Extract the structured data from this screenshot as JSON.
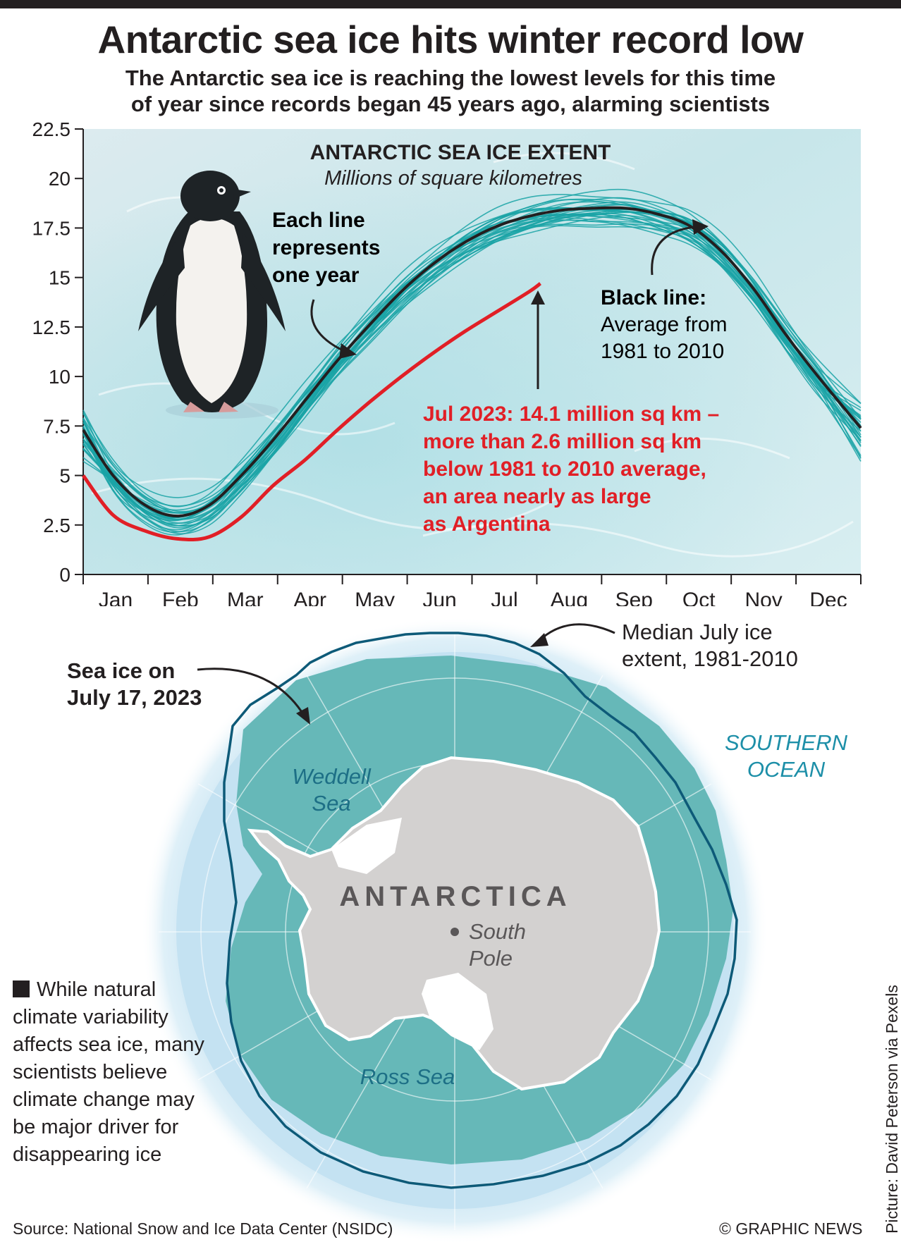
{
  "header": {
    "title": "Antarctic sea ice hits winter record low",
    "subtitle_line1": "The Antarctic sea ice is reaching the lowest levels for this time",
    "subtitle_line2": "of year since records began 45 years ago, alarming scientists"
  },
  "chart_data": {
    "type": "line",
    "title": "ANTARCTIC SEA ICE EXTENT",
    "subtitle": "Millions of square kilometres",
    "ylim": [
      0,
      22.5
    ],
    "y_ticks": [
      "0",
      "2.5",
      "5",
      "7.5",
      "10",
      "12.5",
      "15",
      "17.5",
      "20",
      "22.5"
    ],
    "categories": [
      "Jan",
      "Feb",
      "Mar",
      "Apr",
      "May",
      "Jun",
      "Jul",
      "Aug",
      "Sep",
      "Oct",
      "Nov",
      "Dec"
    ],
    "series": [
      {
        "name": "Average from 1981 to 2010",
        "color": "#231f20",
        "x": [
          1,
          15,
          30,
          45,
          60,
          75,
          90,
          105,
          120,
          135,
          150,
          165,
          180,
          195,
          210,
          225,
          240,
          255,
          270,
          285,
          300,
          315,
          330,
          345,
          365
        ],
        "values": [
          7.3,
          5.0,
          3.5,
          2.95,
          3.5,
          5.0,
          6.8,
          8.8,
          10.8,
          12.6,
          14.3,
          15.7,
          16.8,
          17.6,
          18.1,
          18.4,
          18.5,
          18.5,
          18.2,
          17.6,
          16.3,
          14.4,
          12.1,
          10.0,
          7.4
        ]
      },
      {
        "name": "2023",
        "color": "#e11f26",
        "x": [
          1,
          15,
          30,
          45,
          60,
          75,
          90,
          105,
          120,
          135,
          150,
          165,
          180,
          195,
          210,
          215
        ],
        "values": [
          5.0,
          3.0,
          2.2,
          1.8,
          1.9,
          2.9,
          4.5,
          5.8,
          7.3,
          8.7,
          10.0,
          11.2,
          12.3,
          13.3,
          14.3,
          14.7
        ]
      }
    ],
    "individual_years_note": "Each line represents one year",
    "annotations": {
      "black_line_title": "Black line:",
      "black_line_text1": "Average from",
      "black_line_text2": "1981 to 2010",
      "each_line1": "Each line",
      "each_line2": "represents",
      "each_line3": "one year",
      "red_line1": "Jul 2023: 14.1 million sq km –",
      "red_line2": "more than 2.6 million sq km",
      "red_line3": "below 1981 to 2010 average,",
      "red_line4": "an area nearly as large",
      "red_line5": "as Argentina"
    },
    "colors": {
      "years": "#1aa3a6",
      "average": "#231f20",
      "record": "#e11f26"
    }
  },
  "map": {
    "label_sea_ice1": "Sea ice on",
    "label_sea_ice2": "July 17, 2023",
    "label_median1": "Median July ice",
    "label_median2": "extent, 1981-2010",
    "label_ocean1": "SOUTHERN",
    "label_ocean2": "OCEAN",
    "label_weddell1": "Weddell",
    "label_weddell2": "Sea",
    "label_ross": "Ross Sea",
    "label_antarctica": "ANTARCTICA",
    "label_pole1": "South",
    "label_pole2": "Pole",
    "colors": {
      "sea_ice": "#66b8b8",
      "median_line": "#0d5a78",
      "land": "#d3d1d0",
      "ocean": "#c4e2f2",
      "label": "#1d7f96"
    }
  },
  "note": "While natural climate variability affects sea ice, many scientists believe climate change may be major driver for disappearing ice",
  "footer": {
    "source": "Source: National Snow and Ice Data Center (NSIDC)",
    "copyright": "© GRAPHIC NEWS",
    "picture_credit": "Picture: David Peterson via Pexels"
  }
}
